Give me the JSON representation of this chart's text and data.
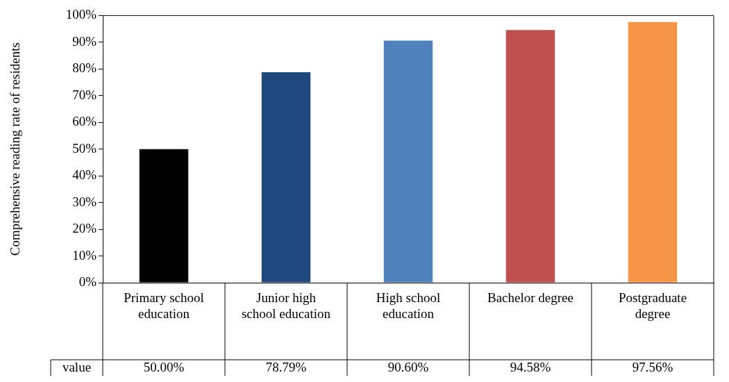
{
  "chart_data": {
    "type": "bar",
    "ylabel": "Comprehensive reading rate of residents",
    "categories": [
      "Primary school education",
      "Junior high school education",
      "High school education",
      "Bachelor degree",
      "Postgraduate degree"
    ],
    "series": [
      {
        "name": "value",
        "colors": [
          "#000000",
          "#1f497d",
          "#4f81bd",
          "#c0504d",
          "#f79646"
        ],
        "values": [
          50.0,
          78.79,
          90.6,
          94.58,
          97.56
        ],
        "value_labels": [
          "50.00%",
          "78.79%",
          "90.60%",
          "94.58%",
          "97.56%"
        ]
      }
    ],
    "ylim": [
      0,
      100
    ],
    "yticks": [
      {
        "value": 0,
        "label": "0%"
      },
      {
        "value": 10,
        "label": "10%"
      },
      {
        "value": 20,
        "label": "20%"
      },
      {
        "value": 30,
        "label": "30%"
      },
      {
        "value": 40,
        "label": "40%"
      },
      {
        "value": 50,
        "label": "50%"
      },
      {
        "value": 60,
        "label": "60%"
      },
      {
        "value": 70,
        "label": "70%"
      },
      {
        "value": 80,
        "label": "80%"
      },
      {
        "value": 90,
        "label": "90%"
      },
      {
        "value": 100,
        "label": "100%"
      }
    ],
    "grid": false,
    "legend": "bottom left"
  }
}
